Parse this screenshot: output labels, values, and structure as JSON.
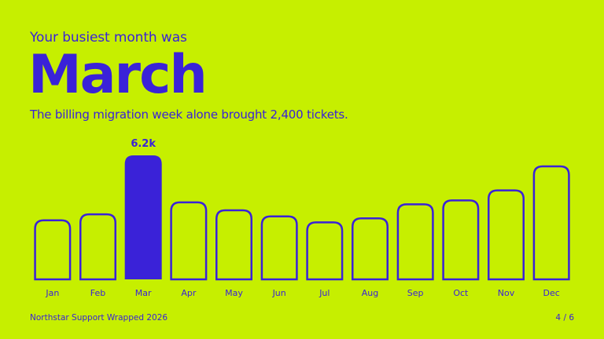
{
  "slide": {
    "kicker": "Your busiest month was",
    "headline": "March",
    "subline": "The billing migration week alone brought 2,400 tickets."
  },
  "footer": {
    "brand": "Northstar Support Wrapped 2026",
    "page": "4 / 6"
  },
  "colors": {
    "background": "#c6ef00",
    "accent": "#3a22d8"
  },
  "chart_data": {
    "type": "bar",
    "categories": [
      "Jan",
      "Feb",
      "Mar",
      "Apr",
      "May",
      "Jun",
      "Jul",
      "Aug",
      "Sep",
      "Oct",
      "Nov",
      "Dec"
    ],
    "values": [
      3.0,
      3.3,
      6.2,
      3.9,
      3.5,
      3.2,
      2.9,
      3.1,
      3.8,
      4.0,
      4.5,
      5.7
    ],
    "unit": "k",
    "highlight_index": 2,
    "highlight_label": "6.2k",
    "ylim": [
      0,
      6.2
    ],
    "grid": false,
    "legend": "none"
  }
}
